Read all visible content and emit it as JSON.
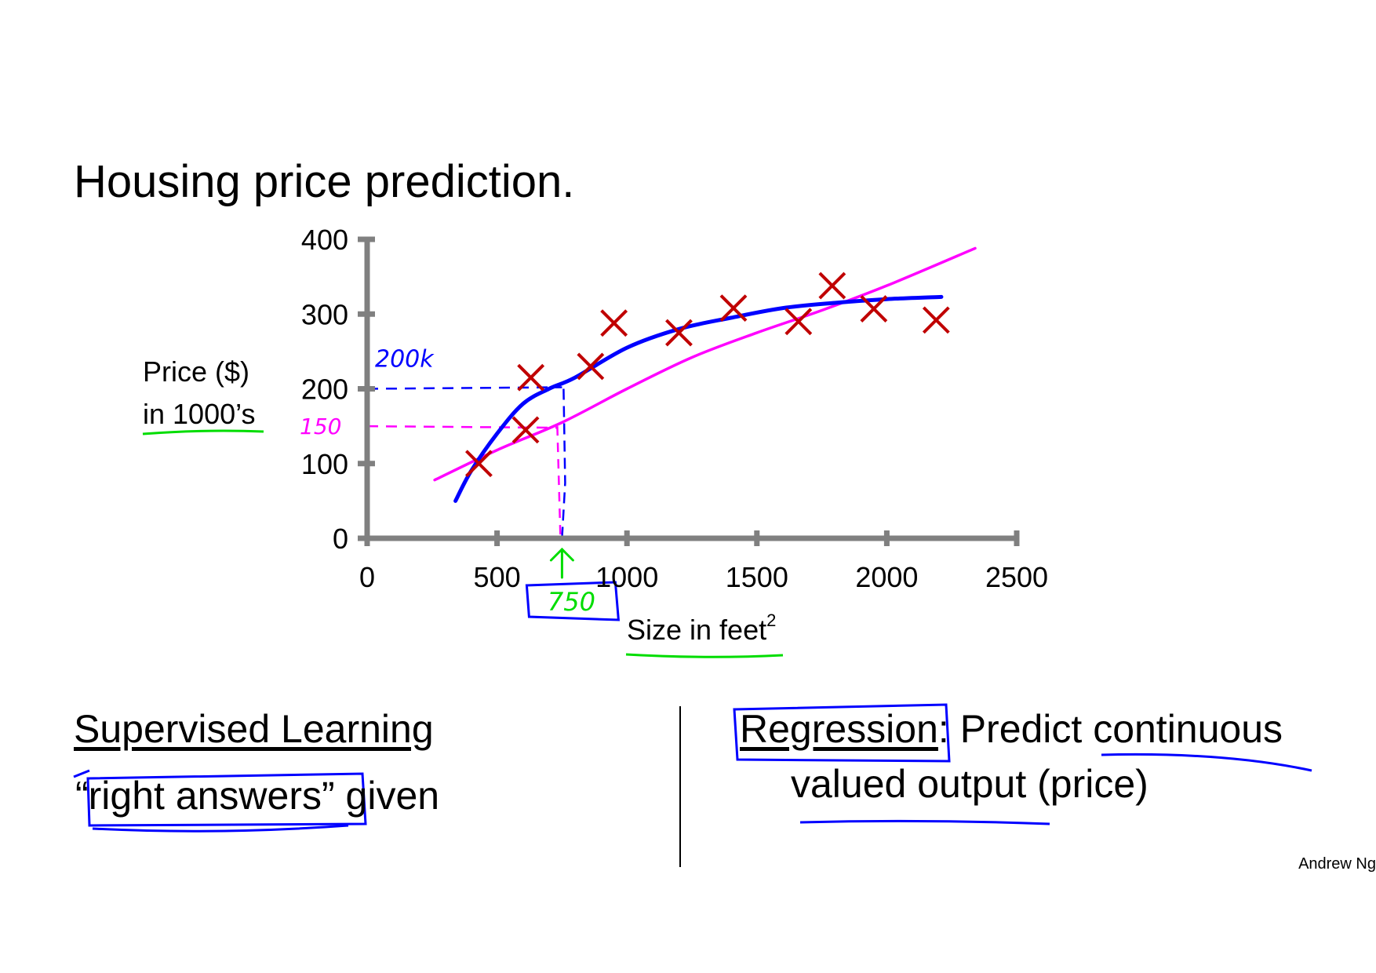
{
  "slide": {
    "title": "Housing price prediction.",
    "author": "Andrew Ng"
  },
  "chart_data": {
    "type": "scatter",
    "xlabel": "Size in feet",
    "xlabel_superscript": "2",
    "ylabel_line1": "Price ($)",
    "ylabel_line2": "in 1000’s",
    "xlim": [
      0,
      2500
    ],
    "ylim": [
      0,
      400
    ],
    "x_ticks": [
      "0",
      "500",
      "1000",
      "1500",
      "2000",
      "2500"
    ],
    "y_ticks": [
      "0",
      "100",
      "200",
      "300",
      "400"
    ],
    "points": [
      {
        "x": 430,
        "y": 100
      },
      {
        "x": 610,
        "y": 145
      },
      {
        "x": 630,
        "y": 215
      },
      {
        "x": 860,
        "y": 230
      },
      {
        "x": 950,
        "y": 288
      },
      {
        "x": 1200,
        "y": 275
      },
      {
        "x": 1410,
        "y": 308
      },
      {
        "x": 1660,
        "y": 290
      },
      {
        "x": 1790,
        "y": 338
      },
      {
        "x": 1950,
        "y": 307
      },
      {
        "x": 2190,
        "y": 292
      }
    ],
    "fits": [
      {
        "kind": "linear",
        "color": "#ff00ff",
        "x": [
          260,
          500,
          750,
          1000,
          1250,
          1500,
          1750,
          2000,
          2340
        ],
        "y": [
          78,
          118,
          155,
          200,
          242,
          275,
          305,
          338,
          388
        ]
      },
      {
        "kind": "curve",
        "color": "#0000ff",
        "x": [
          340,
          400,
          500,
          600,
          700,
          800,
          1000,
          1200,
          1400,
          1600,
          1800,
          2000,
          2210
        ],
        "y": [
          50,
          90,
          140,
          180,
          200,
          215,
          255,
          280,
          295,
          308,
          315,
          320,
          323
        ]
      }
    ],
    "annotations": {
      "query_x": 750,
      "blue_pred": 200,
      "pink_pred": 150,
      "blue_label": "200k",
      "pink_label": "150",
      "x_label": "750"
    },
    "colors": {
      "axis": "#808080",
      "point": "#c00000",
      "blue": "#0000ff",
      "pink": "#ff00ff",
      "green": "#00dd00"
    }
  },
  "notes": {
    "supervised_title": "Supervised Learning",
    "quote_open": "“",
    "right_answers": "right answers",
    "quote_close": "”",
    "given": " given",
    "regression_word": "Regression",
    "regression_rest": ": Predict continuous",
    "regression_line2": "valued output (price)"
  }
}
